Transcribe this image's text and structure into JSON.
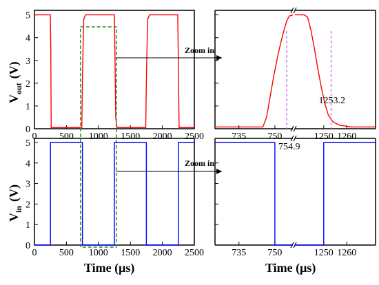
{
  "chart_data": [
    {
      "id": "top-left",
      "type": "line",
      "ylabel_main": "V",
      "ylabel_sub": "out",
      "ylabel_unit": "(V)",
      "xlim": [
        0,
        2500
      ],
      "ylim": [
        0,
        5.2
      ],
      "xticks": [
        "0",
        "500",
        "1000",
        "1500",
        "2000",
        "2500"
      ],
      "xtick_values": [
        0,
        500,
        1000,
        1500,
        2000,
        2500
      ],
      "yticks": [
        "0",
        "1",
        "2",
        "3",
        "4",
        "5"
      ],
      "ytick_values": [
        0,
        1,
        2,
        3,
        4,
        5
      ],
      "color": "#ff0000",
      "series": [
        {
          "x": [
            0,
            248,
            255,
            262,
            740,
            752,
            770,
            800,
            1250,
            1258,
            1270,
            1290,
            1740,
            1752,
            1770,
            1800,
            2240,
            2248,
            2262,
            2500
          ],
          "y": [
            5,
            5,
            3.5,
            0.05,
            0.05,
            2.5,
            4.8,
            5,
            5,
            3.5,
            0.5,
            0.05,
            0.05,
            2.5,
            4.8,
            5,
            5,
            3.5,
            0.05,
            0.05
          ]
        }
      ]
    },
    {
      "id": "top-right",
      "type": "line",
      "xlim_left": [
        725,
        757.5
      ],
      "xlim_right": [
        1237.5,
        1272.5
      ],
      "ylim": [
        0,
        5.2
      ],
      "xticks": [
        "735",
        "750",
        "1250",
        "1260"
      ],
      "xtick_values": [
        735,
        750,
        1250,
        1260
      ],
      "color": "#ff0000",
      "series": [
        {
          "x": [
            725,
            745,
            746.5,
            748,
            749.5,
            751,
            752.5,
            754,
            755,
            756,
            757.5
          ],
          "y": [
            0.08,
            0.08,
            0.5,
            1.4,
            2.3,
            3.1,
            3.8,
            4.4,
            4.75,
            4.95,
            5
          ],
          "x2": [
            1237.5,
            1239.5,
            1241.5,
            1243,
            1244.5,
            1246,
            1247.5,
            1249,
            1250.5,
            1252,
            1254,
            1257,
            1262,
            1272.5
          ],
          "y2": [
            5,
            5,
            5,
            4.9,
            4.3,
            3.5,
            2.6,
            1.8,
            1.1,
            0.6,
            0.3,
            0.15,
            0.08,
            0.08
          ]
        }
      ],
      "annotations": [
        {
          "text": "754.9",
          "x": 754.9
        },
        {
          "text": "1253.2",
          "x": 1253.2
        }
      ]
    },
    {
      "id": "bottom-left",
      "type": "line",
      "ylabel_main": "V",
      "ylabel_sub": "in",
      "ylabel_unit": "(V)",
      "xlabel": "Time (μs)",
      "xlim": [
        0,
        2500
      ],
      "ylim": [
        0,
        5.2
      ],
      "xticks": [
        "0",
        "500",
        "1000",
        "1500",
        "2000",
        "2500"
      ],
      "xtick_values": [
        0,
        500,
        1000,
        1500,
        2000,
        2500
      ],
      "yticks": [
        "0",
        "1",
        "2",
        "3",
        "4",
        "5"
      ],
      "ytick_values": [
        0,
        1,
        2,
        3,
        4,
        5
      ],
      "color": "#0000ff",
      "series": [
        {
          "x": [
            0,
            250,
            250,
            750,
            750,
            1250,
            1250,
            1750,
            1750,
            2250,
            2250,
            2500
          ],
          "y": [
            0,
            0,
            5,
            5,
            0,
            0,
            5,
            5,
            0,
            0,
            5,
            5
          ]
        }
      ]
    },
    {
      "id": "bottom-right",
      "type": "line",
      "xlabel": "Time (μs)",
      "xlim_left": [
        725,
        757.5
      ],
      "xlim_right": [
        1237.5,
        1272.5
      ],
      "ylim": [
        0,
        5.2
      ],
      "xticks": [
        "735",
        "750",
        "1250",
        "1260"
      ],
      "xtick_values": [
        735,
        750,
        1250,
        1260
      ],
      "color": "#0000ff",
      "series": [
        {
          "x": [
            725,
            750,
            750,
            757.5
          ],
          "y": [
            5,
            5,
            0,
            0
          ],
          "x2": [
            1237.5,
            1250,
            1250,
            1272.5
          ],
          "y2": [
            0,
            0,
            5,
            5
          ]
        }
      ]
    }
  ],
  "zoom_label": "Zoom in",
  "zoom_label_2": "Zoom in"
}
